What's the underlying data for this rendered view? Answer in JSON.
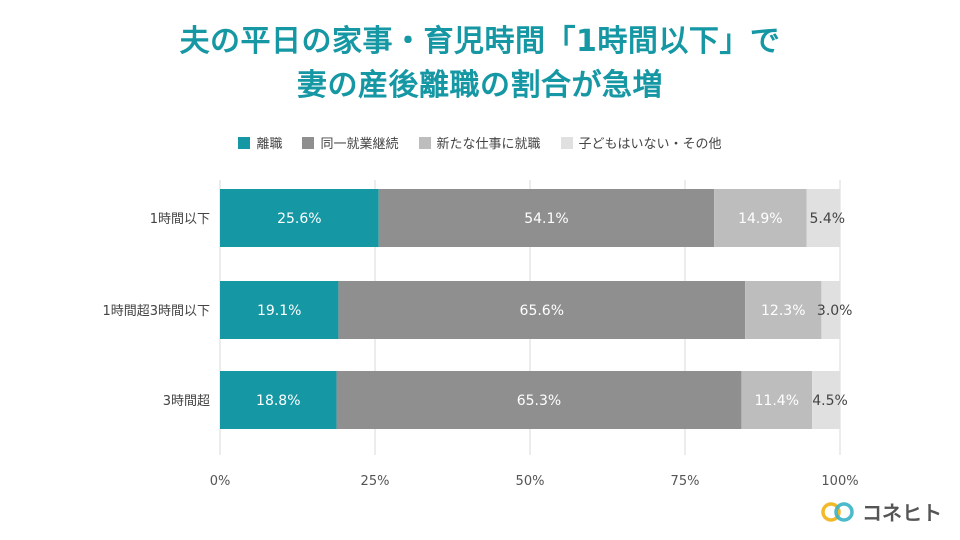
{
  "title_line1": "夫の平日の家事・育児時間「1時間以下」で",
  "title_line2": "妻の産後離職の割合が急増",
  "brand": "コネヒト",
  "chart_data": {
    "type": "bar",
    "orientation": "horizontal",
    "stacked": true,
    "categories": [
      "1時間以下",
      "1時間超3時間以下",
      "3時間超"
    ],
    "series": [
      {
        "name": "離職",
        "color": "#1597a4",
        "values": [
          25.6,
          19.1,
          18.8
        ],
        "labels": [
          "25.6%",
          "19.1%",
          "18.8%"
        ]
      },
      {
        "name": "同一就業継続",
        "color": "#8f8f8f",
        "values": [
          54.1,
          65.6,
          65.3
        ],
        "labels": [
          "54.1%",
          "65.6%",
          "65.3%"
        ]
      },
      {
        "name": "新たな仕事に就職",
        "color": "#bdbdbd",
        "values": [
          14.9,
          12.3,
          11.4
        ],
        "labels": [
          "14.9%",
          "12.3%",
          "11.4%"
        ]
      },
      {
        "name": "子どもはいない・その他",
        "color": "#e0e0e0",
        "values": [
          5.4,
          3.0,
          4.5
        ],
        "labels": [
          "5.4%",
          "3.0%",
          "4.5%"
        ]
      }
    ],
    "xlim": [
      0,
      100
    ],
    "ticks": [
      "0%",
      "25%",
      "50%",
      "75%",
      "100%"
    ],
    "grid": true,
    "legend_position": "top"
  }
}
